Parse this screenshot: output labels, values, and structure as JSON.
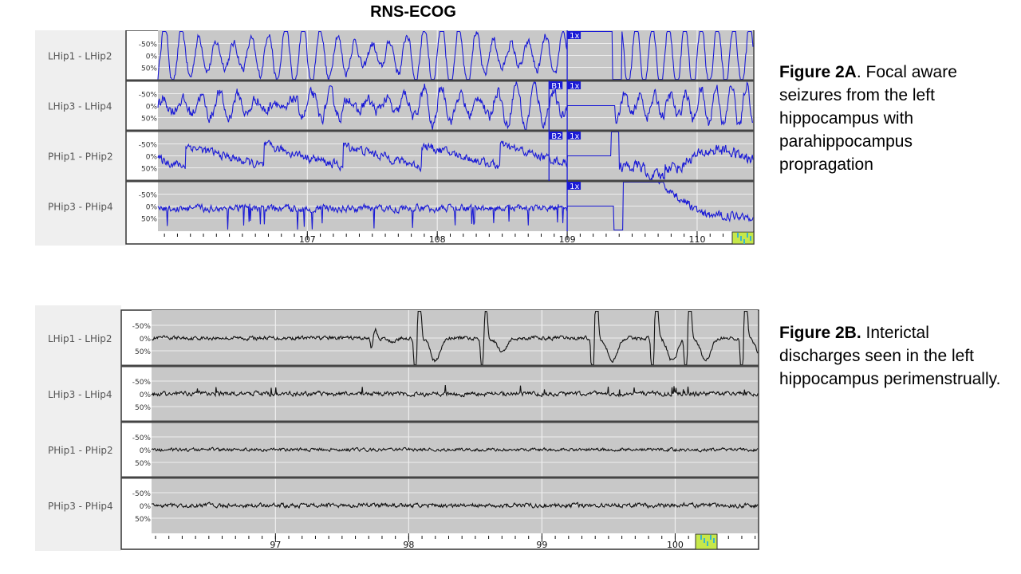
{
  "title": "RNS-ECOG",
  "captions": [
    {
      "label": "Figure 2A",
      "text": ". Focal aware seizures from the left hippocampus with parahippocampus propragation"
    },
    {
      "label": "Figure 2B.",
      "text": " Interictal discharges seen in the left hippocampus perimenstrually."
    }
  ],
  "chart_data": [
    {
      "type": "line",
      "title": "Figure 2A",
      "channels": [
        "LHip1 - LHip2",
        "LHip3 - LHip4",
        "PHip1 - PHip2",
        "PHip3 - PHip4"
      ],
      "y_tick_labels": [
        "50%",
        "0%",
        "-50%"
      ],
      "xlim": [
        105.85,
        110.43
      ],
      "x_ticks": [
        107,
        108,
        109,
        110
      ],
      "x_tick_labels": [
        "107",
        "108",
        "109",
        "110"
      ],
      "line_color": "#1a1ad6",
      "markers": [
        {
          "label": "1x",
          "x": 109.0,
          "channels": [
            0,
            1,
            2,
            3
          ]
        },
        {
          "label": "B1",
          "x": 108.86,
          "channels": [
            1
          ]
        },
        {
          "label": "B2",
          "x": 108.86,
          "channels": [
            2
          ]
        }
      ],
      "grid": true
    },
    {
      "type": "line",
      "title": "Figure 2B",
      "channels": [
        "LHip1 - LHip2",
        "LHip3 - LHip4",
        "PHip1 - PHip2",
        "PHip3 - PHip4"
      ],
      "y_tick_labels": [
        "50%",
        "0%",
        "-50%"
      ],
      "xlim": [
        96.07,
        100.62
      ],
      "x_ticks": [
        97,
        98,
        99,
        100
      ],
      "x_tick_labels": [
        "97",
        "98",
        "99",
        "100"
      ],
      "line_color": "#111111",
      "grid": true
    }
  ]
}
